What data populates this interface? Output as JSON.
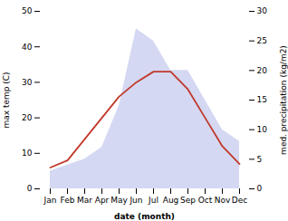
{
  "chart_data": {
    "type": "line",
    "categories": [
      "Jan",
      "Feb",
      "Mar",
      "Apr",
      "May",
      "Jun",
      "Jul",
      "Aug",
      "Sep",
      "Oct",
      "Nov",
      "Dec"
    ],
    "series": [
      {
        "type": "area",
        "axis": "y2",
        "color": "#b0b8e8",
        "values": [
          3,
          4,
          5,
          7,
          14,
          27,
          25,
          20,
          20,
          15,
          10,
          8
        ]
      },
      {
        "type": "line",
        "color": "#c0392b",
        "values": [
          6,
          8,
          14,
          20,
          26,
          30,
          33,
          33,
          28,
          20,
          12,
          7
        ]
      }
    ],
    "xlabel": "date (month)",
    "ylabel": "max temp (C)",
    "y2label": "med. precipitation (kg/m2)",
    "ylim": [
      0,
      50
    ],
    "yticks": [
      0,
      10,
      20,
      30,
      40,
      50
    ],
    "y2lim": [
      0,
      30
    ],
    "y2ticks": [
      0,
      5,
      10,
      15,
      20,
      25,
      30
    ]
  }
}
